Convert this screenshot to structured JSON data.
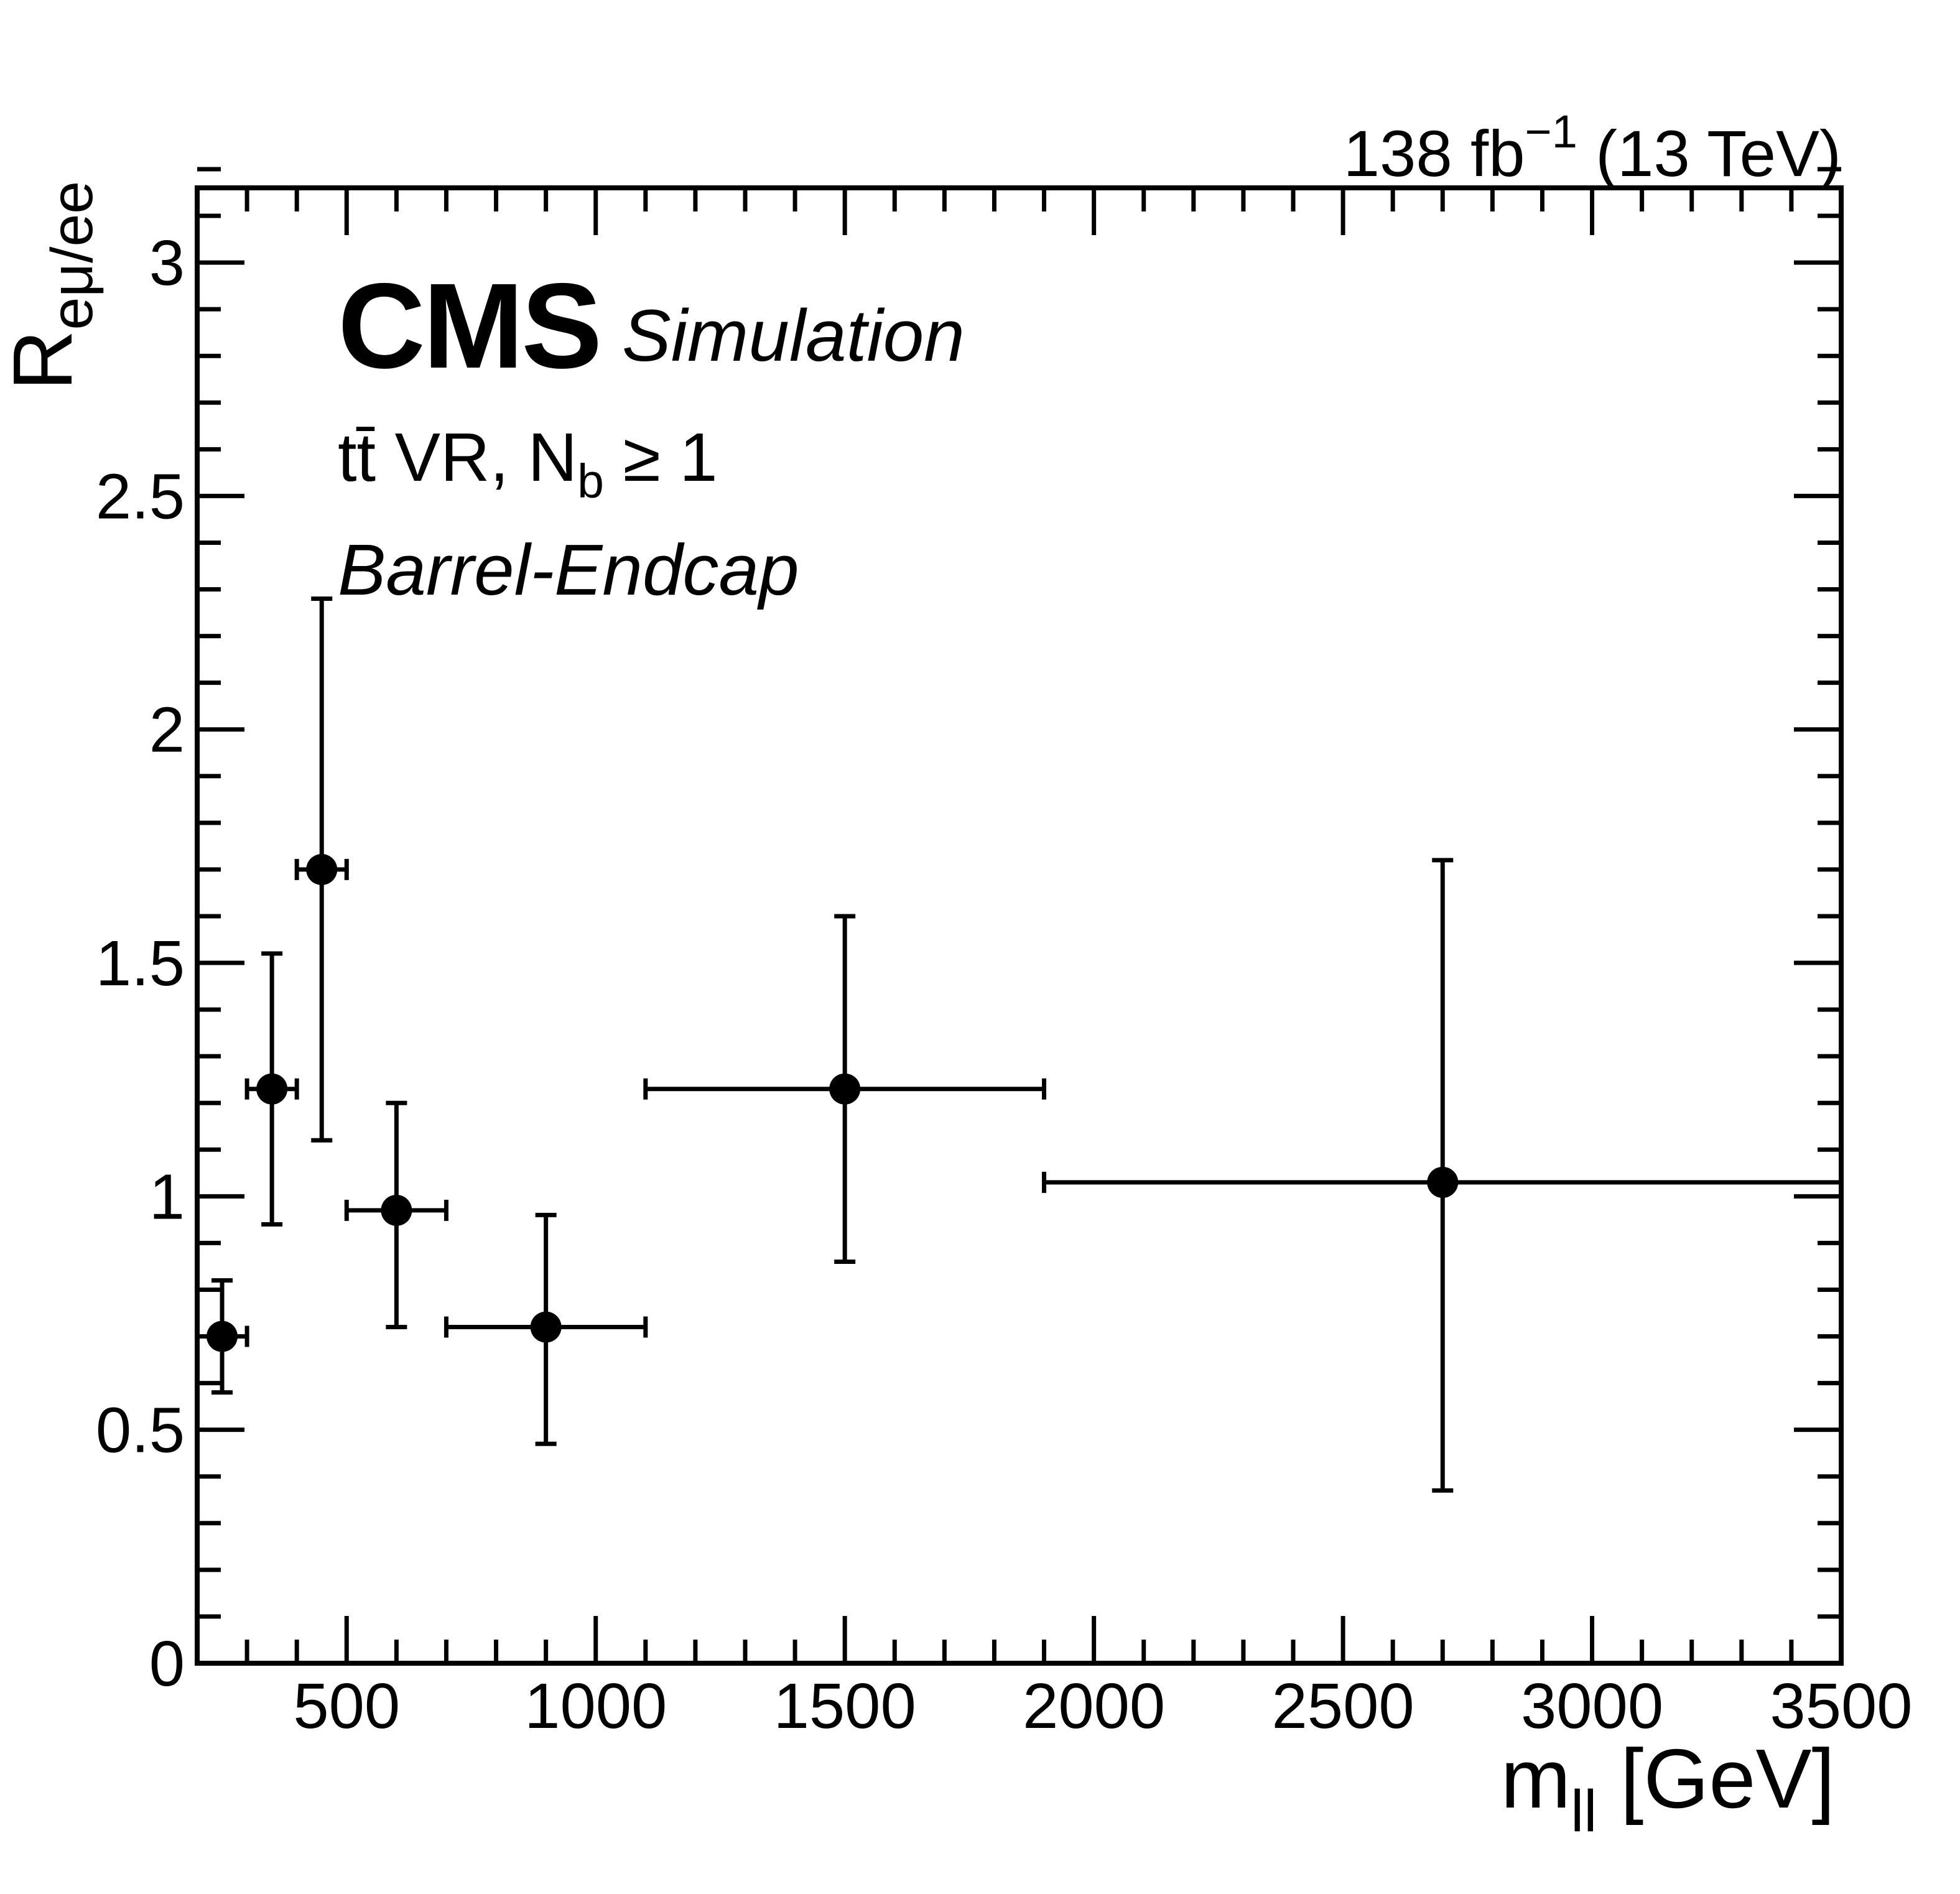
{
  "colors": {
    "foreground": "#000000",
    "background": "#ffffff"
  },
  "lumi": {
    "prefix": "138 fb",
    "superscript": "−1",
    "suffix": " (13 TeV)"
  },
  "annotations": {
    "experiment": "CMS",
    "experiment_sublabel": "Simulation",
    "selection": {
      "pre": "tt̄ VR, N",
      "sub": "b",
      "post": " ≥ 1"
    },
    "region": "Barrel-Endcap"
  },
  "axes": {
    "x": {
      "title": {
        "main": "m",
        "sub": "ll",
        "unit": " [GeV]"
      },
      "min": 200,
      "max": 3500,
      "major_ticks": [
        500,
        1000,
        1500,
        2000,
        2500,
        3000,
        3500
      ],
      "major_labels": [
        "500",
        "1000",
        "1500",
        "2000",
        "2500",
        "3000",
        "3500"
      ],
      "minor_step": 100
    },
    "y": {
      "title": {
        "main": "R",
        "sub": "eμ/ee"
      },
      "min": 0,
      "max": 3.16,
      "major_ticks": [
        0,
        0.5,
        1,
        1.5,
        2,
        2.5,
        3
      ],
      "major_labels": [
        "0",
        "0.5",
        "1",
        "1.5",
        "2",
        "2.5",
        "3"
      ],
      "minor_step": 0.1
    }
  },
  "chart_data": {
    "type": "scatter",
    "title": "CMS Simulation, tt̄ VR, Nb ≥ 1, Barrel-Endcap",
    "xlabel": "m_ll [GeV]",
    "ylabel": "R_eμ/ee",
    "xlim": [
      200,
      3500
    ],
    "ylim": [
      0,
      3.16
    ],
    "grid": false,
    "legend": "none",
    "series": [
      {
        "name": "R_eμ/ee",
        "marker": "filled-circle",
        "color": "#000000",
        "points": [
          {
            "x": 250,
            "x_lo": 200,
            "x_hi": 300,
            "y": 0.7,
            "y_lo": 0.58,
            "y_hi": 0.82
          },
          {
            "x": 350,
            "x_lo": 300,
            "x_hi": 400,
            "y": 1.23,
            "y_lo": 0.94,
            "y_hi": 1.52
          },
          {
            "x": 450,
            "x_lo": 400,
            "x_hi": 500,
            "y": 1.7,
            "y_lo": 1.12,
            "y_hi": 2.28
          },
          {
            "x": 600,
            "x_lo": 500,
            "x_hi": 700,
            "y": 0.97,
            "y_lo": 0.72,
            "y_hi": 1.2
          },
          {
            "x": 900,
            "x_lo": 700,
            "x_hi": 1100,
            "y": 0.72,
            "y_lo": 0.47,
            "y_hi": 0.96
          },
          {
            "x": 1500,
            "x_lo": 1100,
            "x_hi": 1900,
            "y": 1.23,
            "y_lo": 0.86,
            "y_hi": 1.6
          },
          {
            "x": 2700,
            "x_lo": 1900,
            "x_hi": 3500,
            "y": 1.03,
            "y_lo": 0.37,
            "y_hi": 1.72
          }
        ]
      }
    ]
  }
}
